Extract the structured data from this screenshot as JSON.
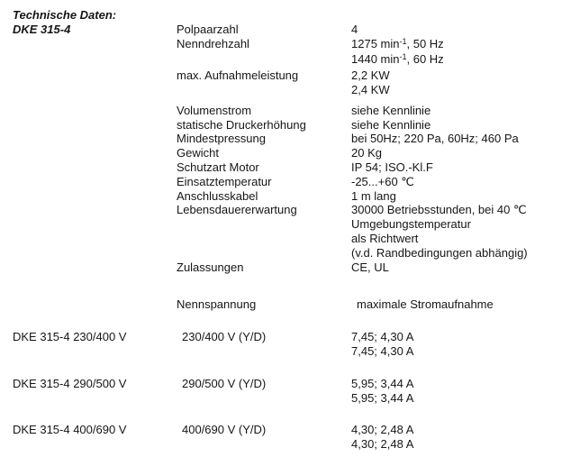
{
  "document": {
    "title": "Technische Daten:",
    "model": "DKE 315-4"
  },
  "specs": [
    {
      "label": "Polpaarzahl",
      "value": "4"
    },
    {
      "label": "Nenndrehzahl",
      "value": "1275 min",
      "sup": "-1",
      "value_cont": ", 50 Hz"
    },
    {
      "label": "",
      "value": "1440 min",
      "sup": "-1",
      "value_cont": ", 60 Hz"
    },
    {
      "label": "max. Aufnahmeleistung",
      "value": "2,2 KW"
    },
    {
      "label": "",
      "value": "2,4 KW"
    },
    {
      "label": "Volumenstrom",
      "value": "siehe Kennlinie"
    },
    {
      "label": "statische Druckerhöhung",
      "value": "siehe Kennlinie"
    },
    {
      "label": "Mindestpressung",
      "value": "bei 50Hz; 220 Pa, 60Hz; 460 Pa"
    },
    {
      "label": "Gewicht",
      "value": "20 Kg"
    },
    {
      "label": "Schutzart Motor",
      "value": "IP 54; ISO.-Kl.F"
    },
    {
      "label": "Einsatztemperatur",
      "value": "-25...+60 ℃"
    },
    {
      "label": "Anschlusskabel",
      "value": "1 m lang"
    },
    {
      "label": "Lebensdauererwartung",
      "value": "30000 Betriebsstunden, bei 40 ℃"
    },
    {
      "label": "",
      "value": "Umgebungstemperatur"
    },
    {
      "label": "",
      "value": "als Richtwert"
    },
    {
      "label": "",
      "value": "(v.d. Randbedingungen abhängig)"
    },
    {
      "label": "Zulassungen",
      "value": "CE, UL"
    }
  ],
  "variants_table": {
    "voltage_header": "Nennspannung",
    "current_header": "maximale Stromaufnahme",
    "rows": [
      {
        "model": "DKE 315-4 230/400 V",
        "voltage": "230/400 V (Y/D)",
        "current_line1": "7,45; 4,30 A",
        "current_line2": "7,45; 4,30 A"
      },
      {
        "model": "DKE 315-4 290/500 V",
        "voltage": "290/500 V (Y/D)",
        "current_line1": "5,95; 3,44 A",
        "current_line2": "5,95; 3,44 A"
      },
      {
        "model": "DKE 315-4 400/690 V",
        "voltage": "400/690 V (Y/D)",
        "current_line1": "4,30; 2,48 A",
        "current_line2": "4,30; 2,48 A"
      }
    ]
  }
}
